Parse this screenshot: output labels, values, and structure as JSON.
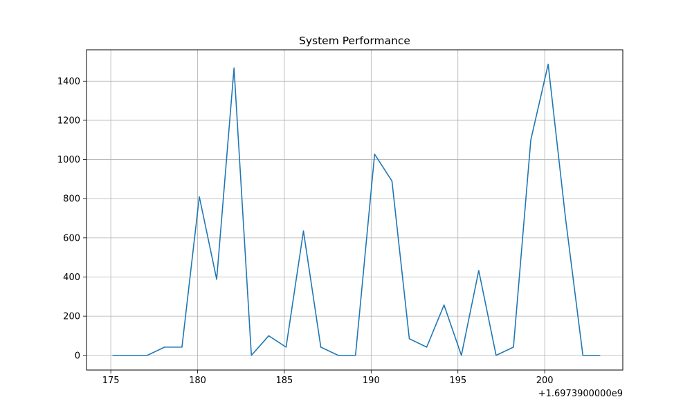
{
  "chart_data": {
    "type": "line",
    "title": "System Performance",
    "xlabel": "",
    "ylabel": "",
    "x_offset_label": "+1.6973900000e9",
    "x_ticks": [
      175,
      180,
      185,
      190,
      195,
      200
    ],
    "x_tick_labels": [
      "175",
      "180",
      "185",
      "190",
      "195",
      "200"
    ],
    "y_ticks": [
      0,
      200,
      400,
      600,
      800,
      1000,
      1200,
      1400
    ],
    "y_tick_labels": [
      "0",
      "200",
      "400",
      "600",
      "800",
      "1000",
      "1200",
      "1400"
    ],
    "xlim": [
      173.6,
      204.5
    ],
    "ylim": [
      -75,
      1560
    ],
    "grid": true,
    "line_color": "#1f77b4",
    "series": [
      {
        "x": [
          175.1,
          176.1,
          177.1,
          178.1,
          179.1,
          180.1,
          181.1,
          182.1,
          183.1,
          184.1,
          185.1,
          186.1,
          187.1,
          188.1,
          189.1,
          190.2,
          191.2,
          192.2,
          193.2,
          194.2,
          195.2,
          196.2,
          197.2,
          198.2,
          199.2,
          200.2,
          201.2,
          202.2,
          203.2
        ],
        "y": [
          0,
          0,
          0,
          42,
          42,
          810,
          388,
          1467,
          0,
          100,
          42,
          635,
          42,
          0,
          0,
          1027,
          890,
          85,
          42,
          257,
          0,
          433,
          0,
          42,
          1100,
          1486,
          700,
          0,
          0
        ]
      }
    ]
  }
}
